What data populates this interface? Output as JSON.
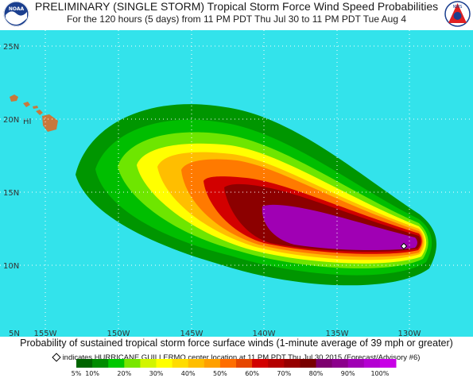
{
  "header": {
    "title": "PRELIMINARY (SINGLE STORM) Tropical Storm Force Wind Speed Probabilities",
    "subtitle": "For the 120 hours (5 days) from 11 PM PDT Thu Jul 30 to 11 PM PDT Tue Aug 4",
    "left_logo": "NOAA",
    "right_logo": "NWS"
  },
  "map": {
    "ocean_color": "#33e3eb",
    "land_color": "#c8783c",
    "grid_color": "#ffffff",
    "lat_labels": [
      "25N",
      "20N",
      "15N",
      "10N",
      "5N"
    ],
    "lon_labels": [
      "155W",
      "150W",
      "145W",
      "140W",
      "135W",
      "130W"
    ],
    "place_labels": [
      {
        "text": "HI"
      }
    ],
    "storm_center_marker": "diamond"
  },
  "footer": {
    "description": "Probability of sustained tropical storm force surface winds (1-minute average of 39 mph or greater)",
    "legend_text": "indicates HURRICANE GUILLERMO center location at 11 PM PDT Thu Jul 30 2015 (Forecast/Advisory #6)"
  },
  "legend": {
    "bins": [
      {
        "label": "5%",
        "color": "#006400"
      },
      {
        "label": "10%",
        "color": "#008c00"
      },
      {
        "label": "",
        "color": "#00c800"
      },
      {
        "label": "20%",
        "color": "#78e600"
      },
      {
        "label": "",
        "color": "#d2f500"
      },
      {
        "label": "30%",
        "color": "#ffff00"
      },
      {
        "label": "",
        "color": "#ffdc00"
      },
      {
        "label": "40%",
        "color": "#ffbe00"
      },
      {
        "label": "",
        "color": "#ffa000"
      },
      {
        "label": "50%",
        "color": "#ff6e00"
      },
      {
        "label": "",
        "color": "#e64600"
      },
      {
        "label": "60%",
        "color": "#d20000"
      },
      {
        "label": "",
        "color": "#b40000"
      },
      {
        "label": "70%",
        "color": "#960000"
      },
      {
        "label": "",
        "color": "#780000"
      },
      {
        "label": "80%",
        "color": "#7d006e"
      },
      {
        "label": "",
        "color": "#8c008c"
      },
      {
        "label": "90%",
        "color": "#a000b4"
      },
      {
        "label": "",
        "color": "#b400d2"
      },
      {
        "label": "100%",
        "color": "#c800e6"
      }
    ]
  }
}
